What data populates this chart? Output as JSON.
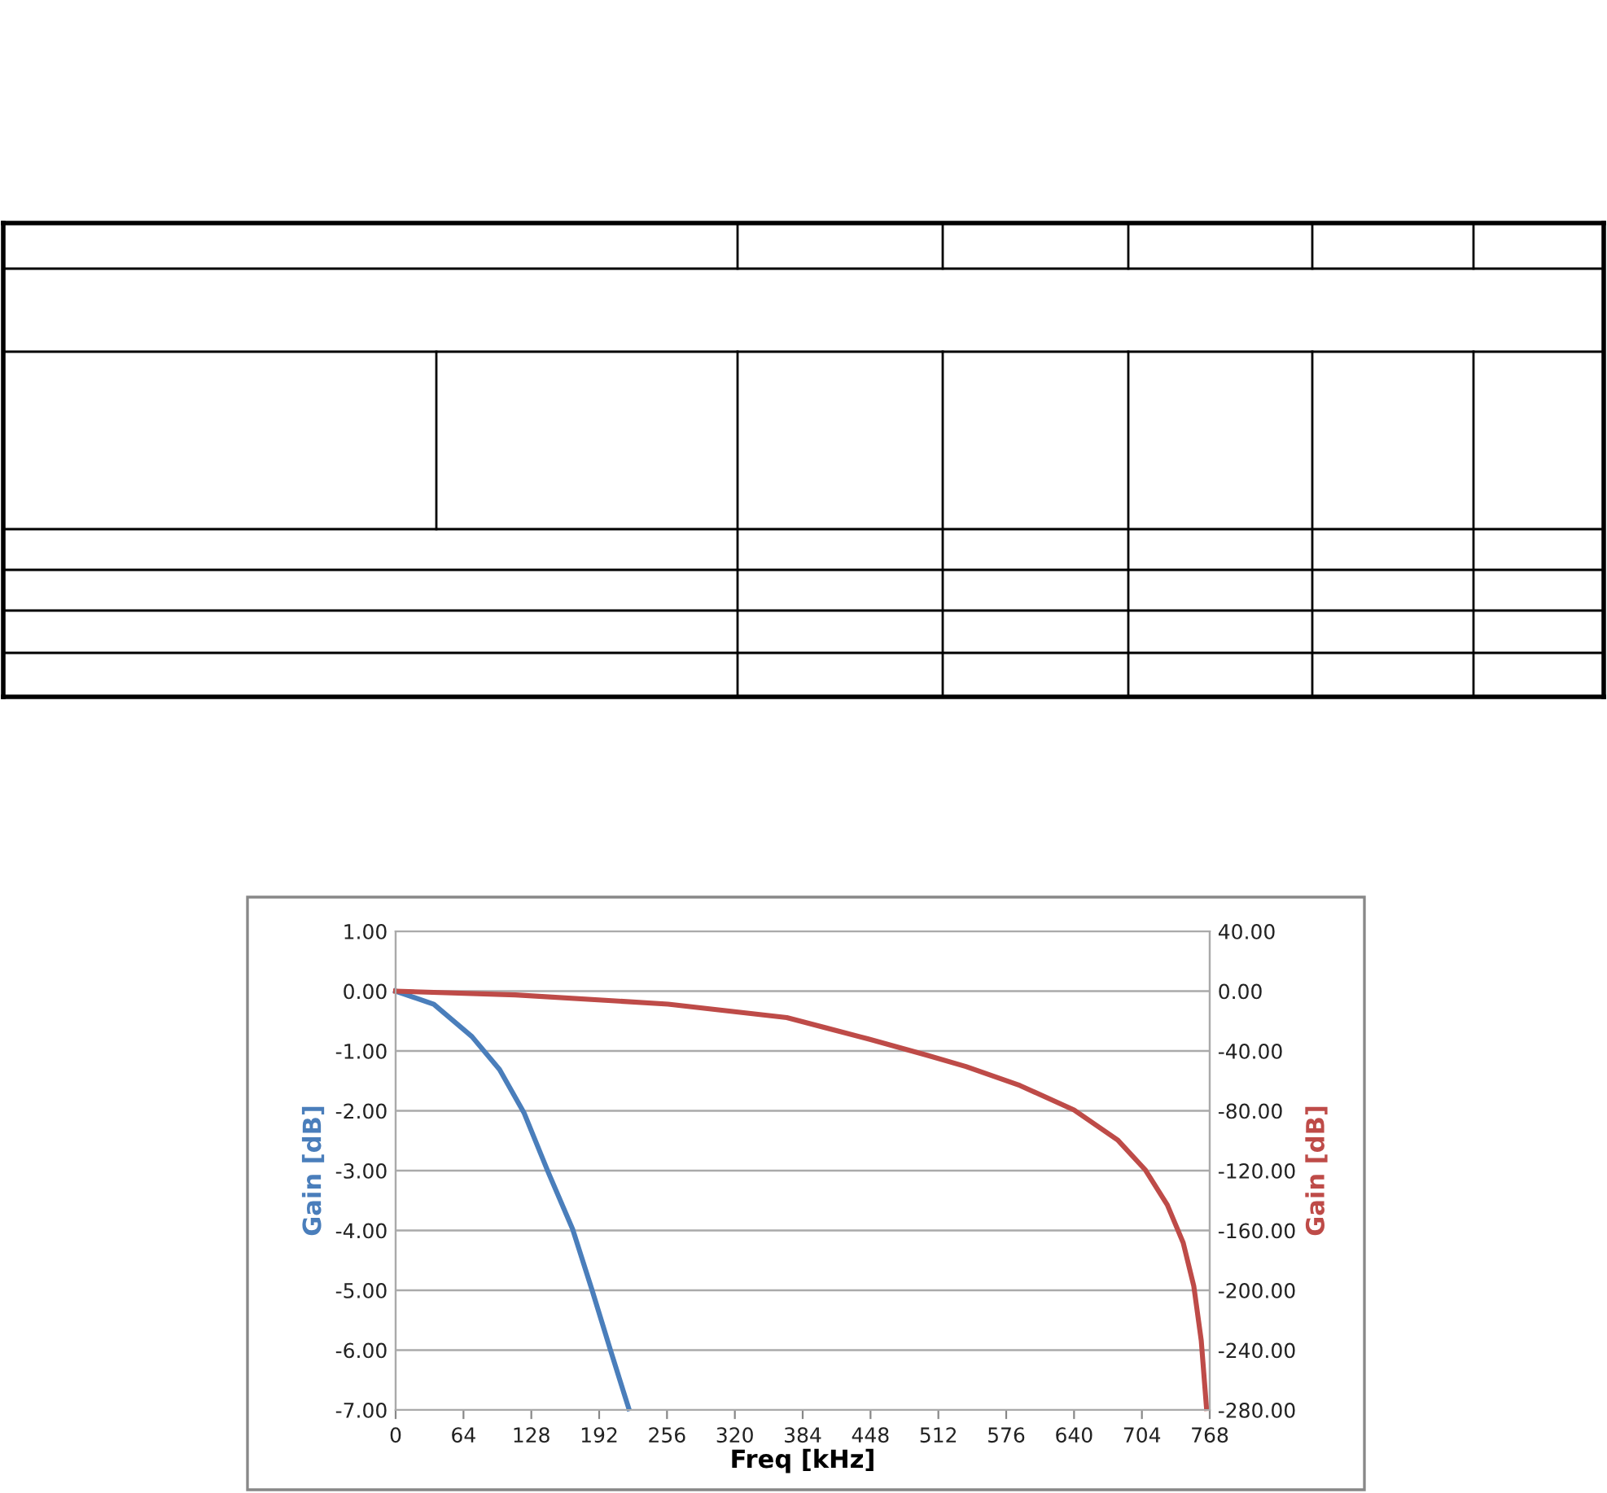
{
  "chart_data": {
    "type": "line",
    "xlabel": "Freq [kHz]",
    "ylabel": "Gain [dB]",
    "y2label": "Gain [dB]",
    "xlim": [
      0,
      768
    ],
    "xticks": [
      0,
      64,
      128,
      192,
      256,
      320,
      384,
      448,
      512,
      576,
      640,
      704,
      768
    ],
    "ylim": [
      -7,
      1
    ],
    "yticks": [
      {
        "value": -7,
        "label": "-7.00"
      },
      {
        "value": -6,
        "label": "-6.00"
      },
      {
        "value": -5,
        "label": "-5.00"
      },
      {
        "value": -4,
        "label": "-4.00"
      },
      {
        "value": -3,
        "label": "-3.00"
      },
      {
        "value": -2,
        "label": "-2.00"
      },
      {
        "value": -1,
        "label": "-1.00"
      },
      {
        "value": 0,
        "label": "0.00"
      },
      {
        "value": 1,
        "label": "1.00"
      }
    ],
    "y2lim": [
      -280,
      40
    ],
    "y2ticks": [
      {
        "value": -280,
        "label": "-280.00"
      },
      {
        "value": -240,
        "label": "-240.00"
      },
      {
        "value": -200,
        "label": "-200.00"
      },
      {
        "value": -160,
        "label": "-160.00"
      },
      {
        "value": -120,
        "label": "-120.00"
      },
      {
        "value": -80,
        "label": "-80.00"
      },
      {
        "value": -40,
        "label": "-40.00"
      },
      {
        "value": 0,
        "label": "0.00"
      },
      {
        "value": 40,
        "label": "40.00"
      }
    ],
    "grid": "y",
    "marker": "none",
    "line_style": "solid",
    "series": [
      {
        "color": "#4a7ebb",
        "x": [
          0,
          36,
          72,
          98,
          121,
          144,
          167,
          185,
          203,
          220
        ],
        "values": [
          0,
          -0.22,
          -0.76,
          -1.31,
          -2.03,
          -3.03,
          -3.98,
          -4.98,
          -6.02,
          -6.98
        ]
      },
      {
        "color": "#be4b48",
        "axis": "y2",
        "x": [
          0,
          113,
          257,
          369,
          446,
          502,
          538,
          589,
          640,
          681,
          707,
          728,
          743,
          753,
          760,
          765
        ],
        "values": [
          0,
          -2.5,
          -8.7,
          -17.7,
          -32,
          -43,
          -50.4,
          -63.1,
          -79.5,
          -99.4,
          -119.3,
          -142.9,
          -168.3,
          -197.3,
          -233.6,
          -279
        ]
      }
    ]
  }
}
